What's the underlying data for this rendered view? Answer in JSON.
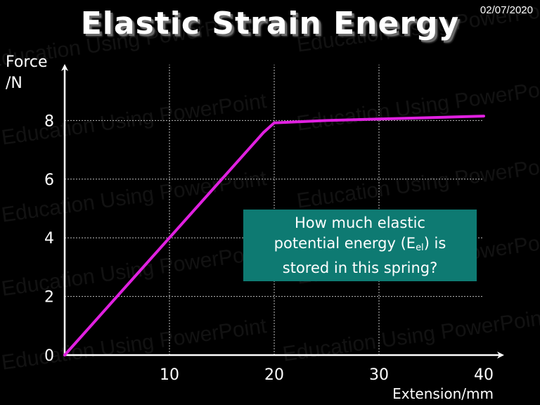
{
  "slide": {
    "title": "Elastic Strain Energy",
    "date": "02/07/2020",
    "watermark": "Education Using PowerPoint",
    "callout": {
      "line1": "How much elastic",
      "line2_before": "potential energy (E",
      "line2_sub": "el",
      "line2_after": ") is",
      "line3": "stored in this spring?"
    }
  },
  "colors": {
    "background": "#000000",
    "text": "#ffffff",
    "line": "#e020e0",
    "callout_bg": "#0e7a72",
    "grid": "#bbbbbb"
  },
  "chart_data": {
    "type": "line",
    "title": "",
    "xlabel": "Extension/mm",
    "ylabel_line1": "Force",
    "ylabel_line2": "/N",
    "xlim": [
      0,
      40
    ],
    "ylim": [
      0,
      10
    ],
    "x_ticks": [
      10,
      20,
      30,
      40
    ],
    "y_ticks": [
      0,
      2,
      4,
      6,
      8
    ],
    "grid": true,
    "series": [
      {
        "x": [
          0,
          5,
          10,
          15,
          19,
          20,
          25,
          30,
          35,
          40
        ],
        "y": [
          0,
          2,
          4,
          6,
          7.6,
          7.92,
          8.0,
          8.05,
          8.1,
          8.15
        ]
      }
    ]
  }
}
